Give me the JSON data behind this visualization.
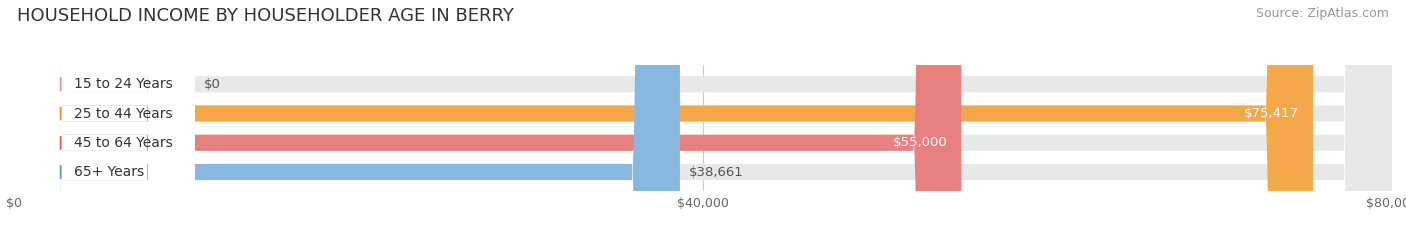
{
  "title": "HOUSEHOLD INCOME BY HOUSEHOLDER AGE IN BERRY",
  "source": "Source: ZipAtlas.com",
  "categories": [
    "15 to 24 Years",
    "25 to 44 Years",
    "45 to 64 Years",
    "65+ Years"
  ],
  "values": [
    0,
    75417,
    55000,
    38661
  ],
  "bar_colors": [
    "#f5a8b5",
    "#f5a84a",
    "#e88080",
    "#88b8e0"
  ],
  "bar_bg_color": "#e8e8e8",
  "dot_colors": [
    "#f0909a",
    "#f09020",
    "#d86060",
    "#6090d0"
  ],
  "value_labels": [
    "$0",
    "$75,417",
    "$55,000",
    "$38,661"
  ],
  "value_label_inside": [
    false,
    true,
    true,
    false
  ],
  "xlim": [
    0,
    80000
  ],
  "xticks": [
    0,
    40000,
    80000
  ],
  "xticklabels": [
    "$0",
    "$40,000",
    "$80,000"
  ],
  "background_color": "#ffffff",
  "title_fontsize": 13,
  "source_fontsize": 9,
  "bar_label_fontsize": 10,
  "value_label_fontsize": 9.5
}
